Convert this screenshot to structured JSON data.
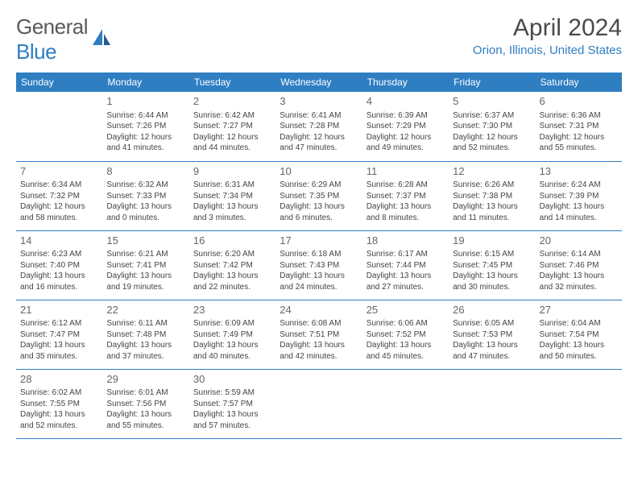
{
  "logo": {
    "textA": "General",
    "textB": "Blue"
  },
  "title": "April 2024",
  "location": "Orion, Illinois, United States",
  "colors": {
    "accent": "#2f7ec2",
    "text": "#444444",
    "header_text": "#ffffff",
    "logo_gray": "#5a5a5a"
  },
  "weekdays": [
    "Sunday",
    "Monday",
    "Tuesday",
    "Wednesday",
    "Thursday",
    "Friday",
    "Saturday"
  ],
  "weeks": [
    [
      null,
      {
        "n": "1",
        "sr": "6:44 AM",
        "ss": "7:26 PM",
        "dh": "12",
        "dm": "41"
      },
      {
        "n": "2",
        "sr": "6:42 AM",
        "ss": "7:27 PM",
        "dh": "12",
        "dm": "44"
      },
      {
        "n": "3",
        "sr": "6:41 AM",
        "ss": "7:28 PM",
        "dh": "12",
        "dm": "47"
      },
      {
        "n": "4",
        "sr": "6:39 AM",
        "ss": "7:29 PM",
        "dh": "12",
        "dm": "49"
      },
      {
        "n": "5",
        "sr": "6:37 AM",
        "ss": "7:30 PM",
        "dh": "12",
        "dm": "52"
      },
      {
        "n": "6",
        "sr": "6:36 AM",
        "ss": "7:31 PM",
        "dh": "12",
        "dm": "55"
      }
    ],
    [
      {
        "n": "7",
        "sr": "6:34 AM",
        "ss": "7:32 PM",
        "dh": "12",
        "dm": "58"
      },
      {
        "n": "8",
        "sr": "6:32 AM",
        "ss": "7:33 PM",
        "dh": "13",
        "dm": "0"
      },
      {
        "n": "9",
        "sr": "6:31 AM",
        "ss": "7:34 PM",
        "dh": "13",
        "dm": "3"
      },
      {
        "n": "10",
        "sr": "6:29 AM",
        "ss": "7:35 PM",
        "dh": "13",
        "dm": "6"
      },
      {
        "n": "11",
        "sr": "6:28 AM",
        "ss": "7:37 PM",
        "dh": "13",
        "dm": "8"
      },
      {
        "n": "12",
        "sr": "6:26 AM",
        "ss": "7:38 PM",
        "dh": "13",
        "dm": "11"
      },
      {
        "n": "13",
        "sr": "6:24 AM",
        "ss": "7:39 PM",
        "dh": "13",
        "dm": "14"
      }
    ],
    [
      {
        "n": "14",
        "sr": "6:23 AM",
        "ss": "7:40 PM",
        "dh": "13",
        "dm": "16"
      },
      {
        "n": "15",
        "sr": "6:21 AM",
        "ss": "7:41 PM",
        "dh": "13",
        "dm": "19"
      },
      {
        "n": "16",
        "sr": "6:20 AM",
        "ss": "7:42 PM",
        "dh": "13",
        "dm": "22"
      },
      {
        "n": "17",
        "sr": "6:18 AM",
        "ss": "7:43 PM",
        "dh": "13",
        "dm": "24"
      },
      {
        "n": "18",
        "sr": "6:17 AM",
        "ss": "7:44 PM",
        "dh": "13",
        "dm": "27"
      },
      {
        "n": "19",
        "sr": "6:15 AM",
        "ss": "7:45 PM",
        "dh": "13",
        "dm": "30"
      },
      {
        "n": "20",
        "sr": "6:14 AM",
        "ss": "7:46 PM",
        "dh": "13",
        "dm": "32"
      }
    ],
    [
      {
        "n": "21",
        "sr": "6:12 AM",
        "ss": "7:47 PM",
        "dh": "13",
        "dm": "35"
      },
      {
        "n": "22",
        "sr": "6:11 AM",
        "ss": "7:48 PM",
        "dh": "13",
        "dm": "37"
      },
      {
        "n": "23",
        "sr": "6:09 AM",
        "ss": "7:49 PM",
        "dh": "13",
        "dm": "40"
      },
      {
        "n": "24",
        "sr": "6:08 AM",
        "ss": "7:51 PM",
        "dh": "13",
        "dm": "42"
      },
      {
        "n": "25",
        "sr": "6:06 AM",
        "ss": "7:52 PM",
        "dh": "13",
        "dm": "45"
      },
      {
        "n": "26",
        "sr": "6:05 AM",
        "ss": "7:53 PM",
        "dh": "13",
        "dm": "47"
      },
      {
        "n": "27",
        "sr": "6:04 AM",
        "ss": "7:54 PM",
        "dh": "13",
        "dm": "50"
      }
    ],
    [
      {
        "n": "28",
        "sr": "6:02 AM",
        "ss": "7:55 PM",
        "dh": "13",
        "dm": "52"
      },
      {
        "n": "29",
        "sr": "6:01 AM",
        "ss": "7:56 PM",
        "dh": "13",
        "dm": "55"
      },
      {
        "n": "30",
        "sr": "5:59 AM",
        "ss": "7:57 PM",
        "dh": "13",
        "dm": "57"
      },
      null,
      null,
      null,
      null
    ]
  ]
}
